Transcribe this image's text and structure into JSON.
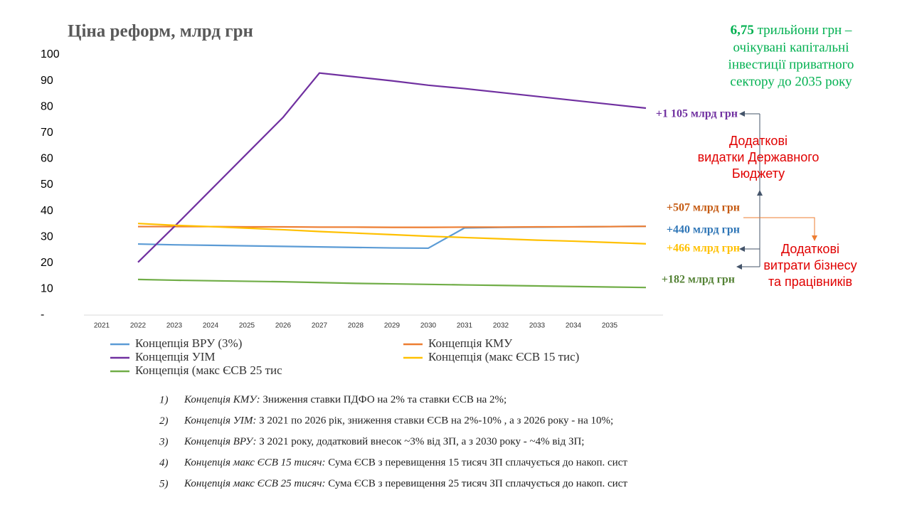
{
  "chart_data": {
    "type": "line",
    "title": "Ціна реформ, млрд грн",
    "categories": [
      "2021",
      "2022",
      "2023",
      "2024",
      "2025",
      "2026",
      "2027",
      "2028",
      "2029",
      "2030",
      "2031",
      "2032",
      "2033",
      "2034",
      "2035",
      null
    ],
    "ylim": [
      0,
      100
    ],
    "yticks": [
      {
        "value": 0,
        "label": "-"
      },
      10,
      20,
      30,
      40,
      50,
      60,
      70,
      80,
      90,
      100
    ],
    "series": [
      {
        "name": "Концепція ВРУ (3%)",
        "color": "#5b9bd5",
        "values": [
          null,
          27.3,
          27.0,
          26.8,
          26.6,
          26.4,
          26.2,
          26.0,
          25.8,
          25.7,
          33.5,
          33.7,
          33.8,
          33.9,
          34.0,
          34.1
        ]
      },
      {
        "name": "Концепція КМУ",
        "color": "#ed7d31",
        "values": [
          null,
          34.0,
          34.0,
          34.0,
          33.9,
          33.9,
          33.8,
          33.8,
          33.7,
          33.7,
          33.8,
          33.8,
          33.9,
          33.9,
          34.0,
          34.1
        ]
      },
      {
        "name": "Концепція УІМ",
        "color": "#7030a0",
        "values": [
          null,
          20.3,
          34,
          48,
          62,
          76,
          93,
          91.5,
          90,
          88.3,
          87,
          85.5,
          84,
          82.5,
          81,
          79.5
        ]
      },
      {
        "name": "Концепція (макс ЄСВ 15 тис)",
        "color": "#ffc000",
        "values": [
          null,
          35.2,
          34.5,
          34.0,
          33.4,
          32.8,
          32.1,
          31.5,
          30.9,
          30.3,
          29.8,
          29.3,
          28.8,
          28.4,
          27.9,
          27.4
        ]
      },
      {
        "name": "Концепція (макс ЄСВ 25 тис",
        "color": "#70ad47",
        "values": [
          null,
          13.7,
          13.4,
          13.2,
          13.0,
          12.8,
          12.5,
          12.2,
          12.0,
          11.8,
          11.6,
          11.4,
          11.2,
          11.0,
          10.8,
          10.6
        ]
      }
    ],
    "annotations": [
      {
        "text": "+1 105 млрд грн",
        "color": "#7030a0"
      },
      {
        "text": "+507 млрд грн",
        "color": "#c55a11"
      },
      {
        "text": "+440 млрд грн",
        "color": "#2e75b6"
      },
      {
        "text": "+466 млрд грн",
        "color": "#ffc000"
      },
      {
        "text": "+182 млрд грн",
        "color": "#548235"
      }
    ],
    "side_note": {
      "color": "#00b050",
      "lines": [
        {
          "bold": "6,75",
          "text": " трильйони грн –"
        },
        "очікувані капітальні",
        "інвестиції приватного",
        "сектору до 2035 року"
      ]
    },
    "budget_note": [
      "Додаткові",
      "видатки Державного",
      "Бюджету"
    ],
    "business_note": [
      "Додаткові",
      "витрати бізнесу",
      "та працівників"
    ],
    "footnotes": [
      {
        "number": "1)",
        "label": "Концепція КМУ:",
        "text": " Зниження ставки ПДФО на 2% та ставки ЄСВ на 2%;"
      },
      {
        "number": "2)",
        "label": "Концепція УІМ:",
        "text": " З 2021 по 2026 рік, зниження ставки ЄСВ на 2%-10% , а з 2026 року - на 10%;"
      },
      {
        "number": "3)",
        "label": "Концепція ВРУ:",
        "text": " З 2021 року, додатковий внесок ~3% від ЗП, а з 2030 року - ~4% від ЗП;"
      },
      {
        "number": "4)",
        "label": "Концепція макс ЄСВ 15 тисяч:",
        "text": " Сума ЄСВ з перевищення 15 тисяч ЗП сплачується до накоп. сист"
      },
      {
        "number": "5)",
        "label": "Концепція макс ЄСВ 25 тисяч:",
        "text": " Сума ЄСВ з перевищення 25 тисяч ЗП сплачується до накоп. сист"
      }
    ]
  }
}
